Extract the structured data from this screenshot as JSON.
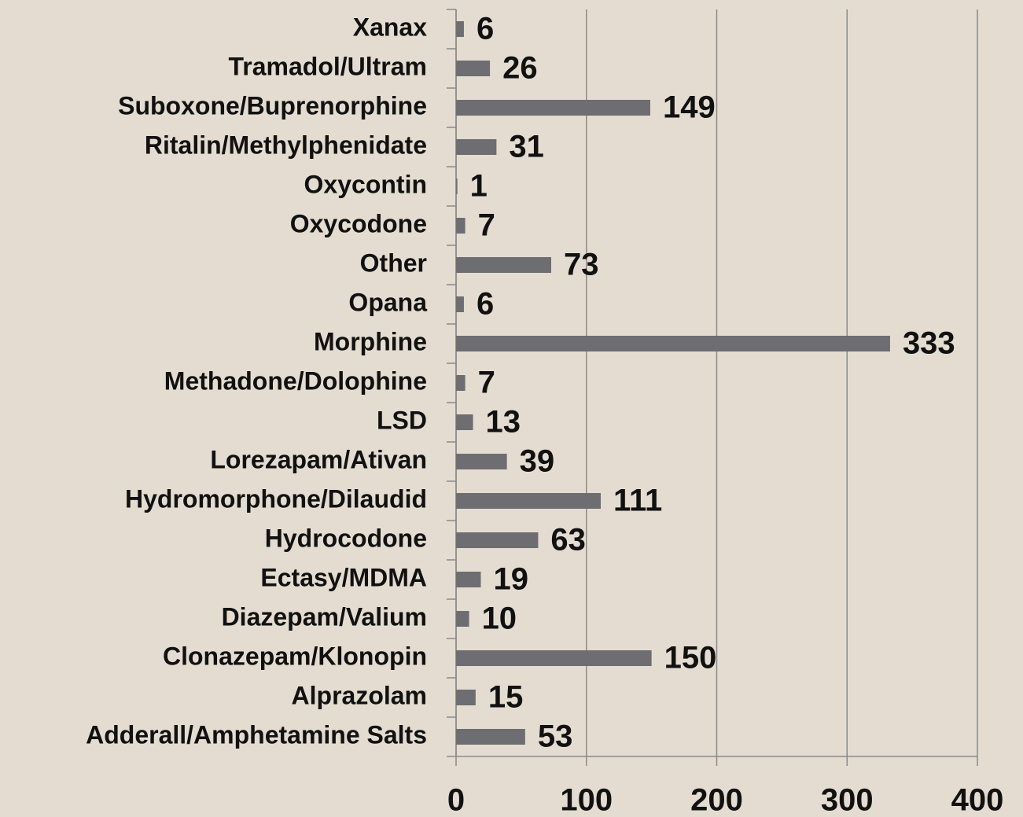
{
  "chart_data": {
    "type": "barh",
    "categories": [
      "Xanax",
      "Tramadol/Ultram",
      "Suboxone/Buprenorphine",
      "Ritalin/Methylphenidate",
      "Oxycontin",
      "Oxycodone",
      "Other",
      "Opana",
      "Morphine",
      "Methadone/Dolophine",
      "LSD",
      "Lorezapam/Ativan",
      "Hydromorphone/Dilaudid",
      "Hydrocodone",
      "Ectasy/MDMA",
      "Diazepam/Valium",
      "Clonazepam/Klonopin",
      "Alprazolam",
      "Adderall/Amphetamine Salts"
    ],
    "values": [
      6,
      26,
      149,
      31,
      1,
      7,
      73,
      6,
      333,
      7,
      13,
      39,
      111,
      63,
      19,
      10,
      150,
      15,
      53
    ],
    "color": "#6d6d72",
    "xlim": [
      0,
      400
    ],
    "xticks": [
      0,
      100,
      200,
      300,
      400
    ],
    "grid": true
  }
}
